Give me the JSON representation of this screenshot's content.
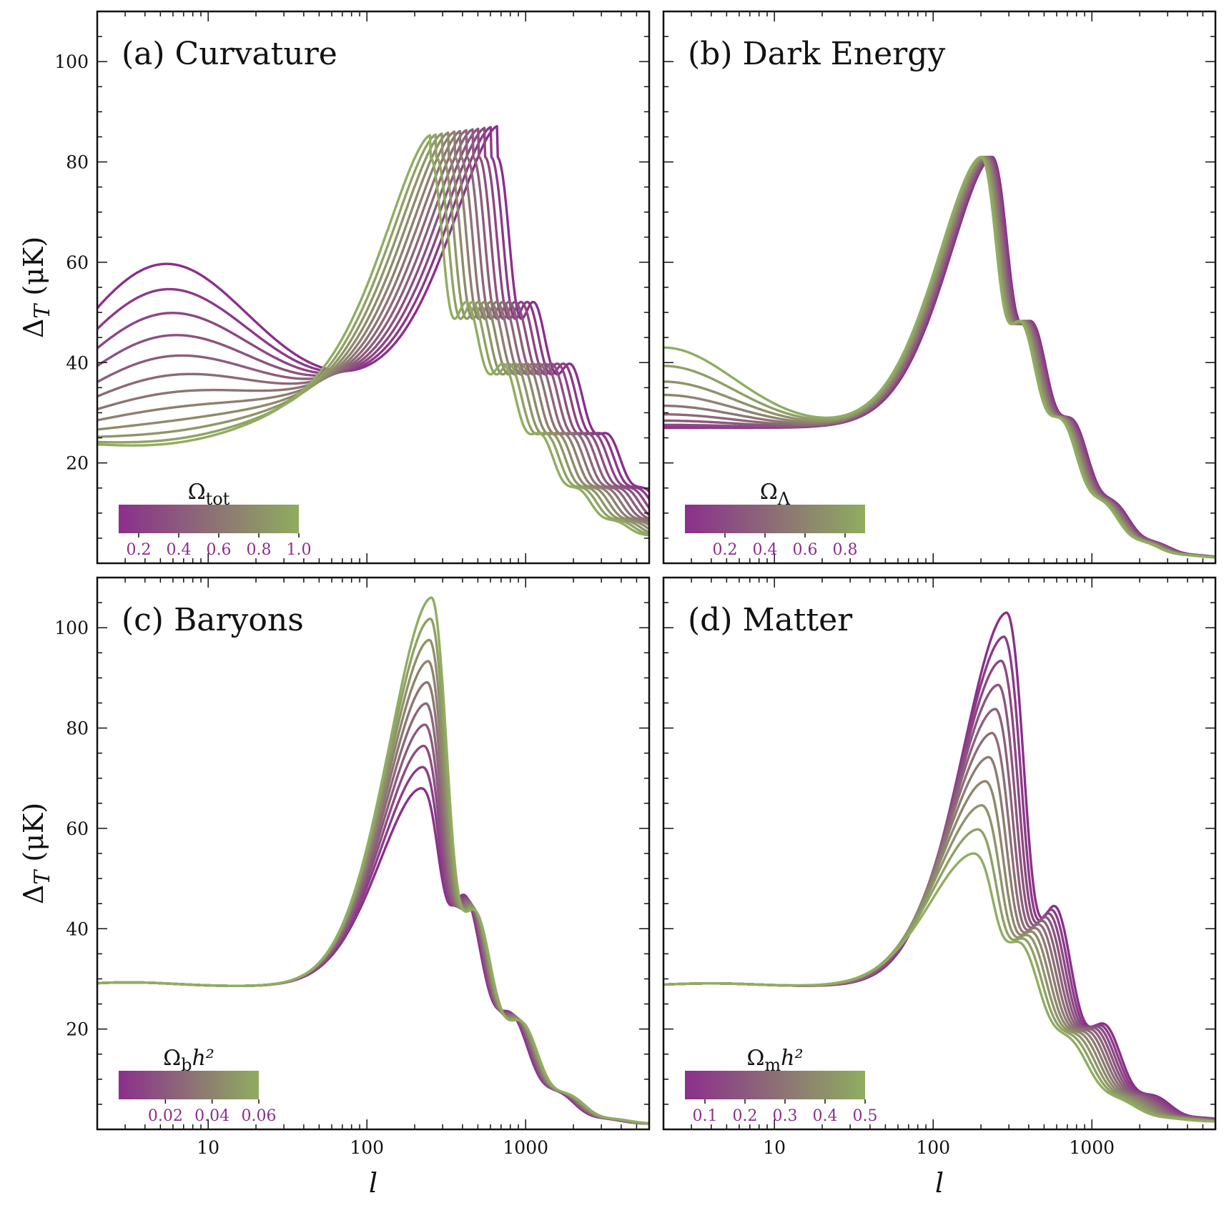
{
  "figure": {
    "ylabel_main": "Δ",
    "ylabel_sub": "T",
    "ylabel_unit": " (μK)",
    "xlabel": "l",
    "colors": {
      "low": "#8b2f8c",
      "high": "#8fad60"
    }
  },
  "chart_data": [
    {
      "id": "a",
      "type": "line",
      "title": "(a) Curvature",
      "xscale": "log",
      "xlim": [
        2,
        6000
      ],
      "ylim": [
        0,
        110
      ],
      "xticks": [
        "10",
        "100",
        "1000"
      ],
      "yticks": [
        "20",
        "40",
        "60",
        "80",
        "100"
      ],
      "colorbar": {
        "title_main": "Ω",
        "title_sub": "tot",
        "title_tail": "",
        "ticks": [
          "0.2",
          "0.4",
          "0.6",
          "0.8",
          "1.0"
        ],
        "range": [
          0.1,
          1.0
        ]
      },
      "series": {
        "count": 12,
        "param_range": [
          0.1,
          1.0
        ]
      },
      "features": {
        "peak1_l_range": [
          250,
          700
        ],
        "peak1_height": 81,
        "low_l_range": [
          22,
          58
        ]
      }
    },
    {
      "id": "b",
      "type": "line",
      "title": "(b) Dark Energy",
      "xscale": "log",
      "xlim": [
        2,
        6000
      ],
      "ylim": [
        0,
        110
      ],
      "xticks": [
        "10",
        "100",
        "1000"
      ],
      "yticks": [],
      "colorbar": {
        "title_main": "Ω",
        "title_sub": "Λ",
        "title_tail": "",
        "ticks": [
          "0.2",
          "0.4",
          "0.6",
          "0.8"
        ],
        "range": [
          0.0,
          0.9
        ]
      },
      "series": {
        "count": 10,
        "param_range": [
          0.0,
          0.9
        ]
      },
      "features": {
        "peak1_l_range": [
          200,
          235
        ],
        "peak1_height": 81,
        "low_l_range": [
          27,
          43
        ]
      }
    },
    {
      "id": "c",
      "type": "line",
      "title": "(c) Baryons",
      "xscale": "log",
      "xlim": [
        2,
        6000
      ],
      "ylim": [
        0,
        110
      ],
      "xticks": [
        "10",
        "100",
        "1000"
      ],
      "yticks": [
        "20",
        "40",
        "60",
        "80",
        "100"
      ],
      "colorbar": {
        "title_main": "Ω",
        "title_sub": "b",
        "title_tail": "h²",
        "ticks": [
          "0.02",
          "0.04",
          "0.06"
        ],
        "range": [
          0.0,
          0.06
        ]
      },
      "series": {
        "count": 10,
        "param_range": [
          0.0,
          0.06
        ]
      },
      "features": {
        "peak1_l_range": [
          220,
          255
        ],
        "peak1_height_range": [
          68,
          106
        ],
        "low_l_plateau": 29
      }
    },
    {
      "id": "d",
      "type": "line",
      "title": "(d) Matter",
      "xscale": "log",
      "xlim": [
        2,
        6000
      ],
      "ylim": [
        0,
        110
      ],
      "xticks": [
        "10",
        "100",
        "1000"
      ],
      "yticks": [],
      "colorbar": {
        "title_main": "Ω",
        "title_sub": "m",
        "title_tail": "h²",
        "ticks": [
          "0.1",
          "0.2",
          "0.3",
          "0.4",
          "0.5"
        ],
        "range": [
          0.05,
          0.5
        ]
      },
      "series": {
        "count": 11,
        "param_range": [
          0.05,
          0.5
        ]
      },
      "features": {
        "peak1_l_range": [
          290,
          180
        ],
        "peak1_height_range": [
          103,
          55
        ],
        "low_l_plateau": 29
      }
    }
  ]
}
